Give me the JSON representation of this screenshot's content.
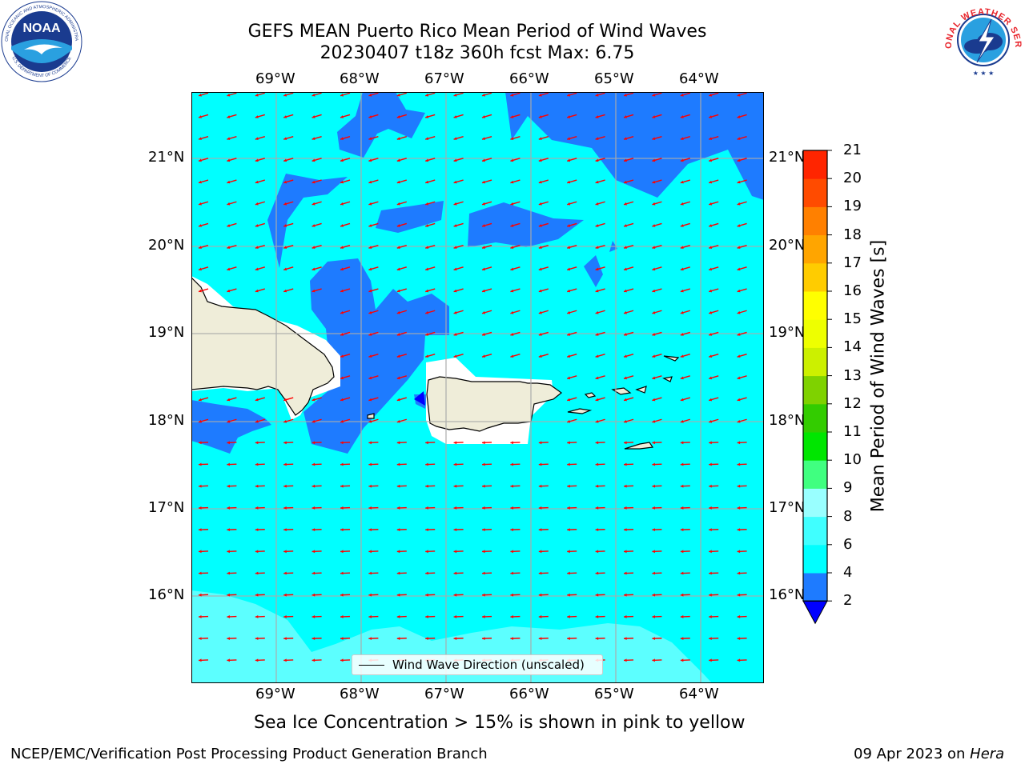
{
  "title_line1": "GEFS MEAN Puerto Rico Mean Period of Wind Waves",
  "title_line2": "20230407 t18z 360h fcst   Max: 6.75",
  "lon_ticks": [
    "69°W",
    "68°W",
    "67°W",
    "66°W",
    "65°W",
    "64°W"
  ],
  "lat_ticks": [
    "21°N",
    "20°N",
    "19°N",
    "18°N",
    "17°N",
    "16°N"
  ],
  "legend_label": "Wind Wave Direction (unscaled)",
  "colorbar": {
    "label": "Mean Period of Wind Waves [s]",
    "ticks": [
      "2",
      "4",
      "6",
      "8",
      "9",
      "10",
      "11",
      "12",
      "13",
      "14",
      "15",
      "16",
      "17",
      "18",
      "19",
      "20",
      "21"
    ],
    "colors": [
      "#1e7bff",
      "#00ffff",
      "#40ffff",
      "#99ffff",
      "#40ff80",
      "#00e600",
      "#33cc00",
      "#7fd200",
      "#ccf000",
      "#eeff00",
      "#ffff00",
      "#ffcc00",
      "#ffa500",
      "#ff8000",
      "#ff4b00",
      "#ff2500",
      "#ff0000"
    ],
    "under_color": "#0000ff"
  },
  "map_colors": {
    "land": "#efedd9",
    "period_2_4": "#1e7bff",
    "period_4_6": "#00ffff",
    "period_6_8": "#5cffff",
    "arrow": "#ff0000"
  },
  "footer_left": "NCEP/EMC/Verification Post Processing Product Generation Branch",
  "footer_right_date": "09 Apr 2023 on ",
  "footer_right_host": "Hera",
  "sea_ice_note": "Sea Ice Concentration > 15% is shown in pink to yellow",
  "logos": {
    "noaa": "NOAA",
    "noaa_ring_top": "NATIONAL OCEANIC AND ATMOSPHERIC ADMINISTRATION",
    "noaa_ring_bottom": "U.S. DEPARTMENT OF COMMERCE",
    "nws_ring": "NATIONAL WEATHER SERVICE"
  }
}
